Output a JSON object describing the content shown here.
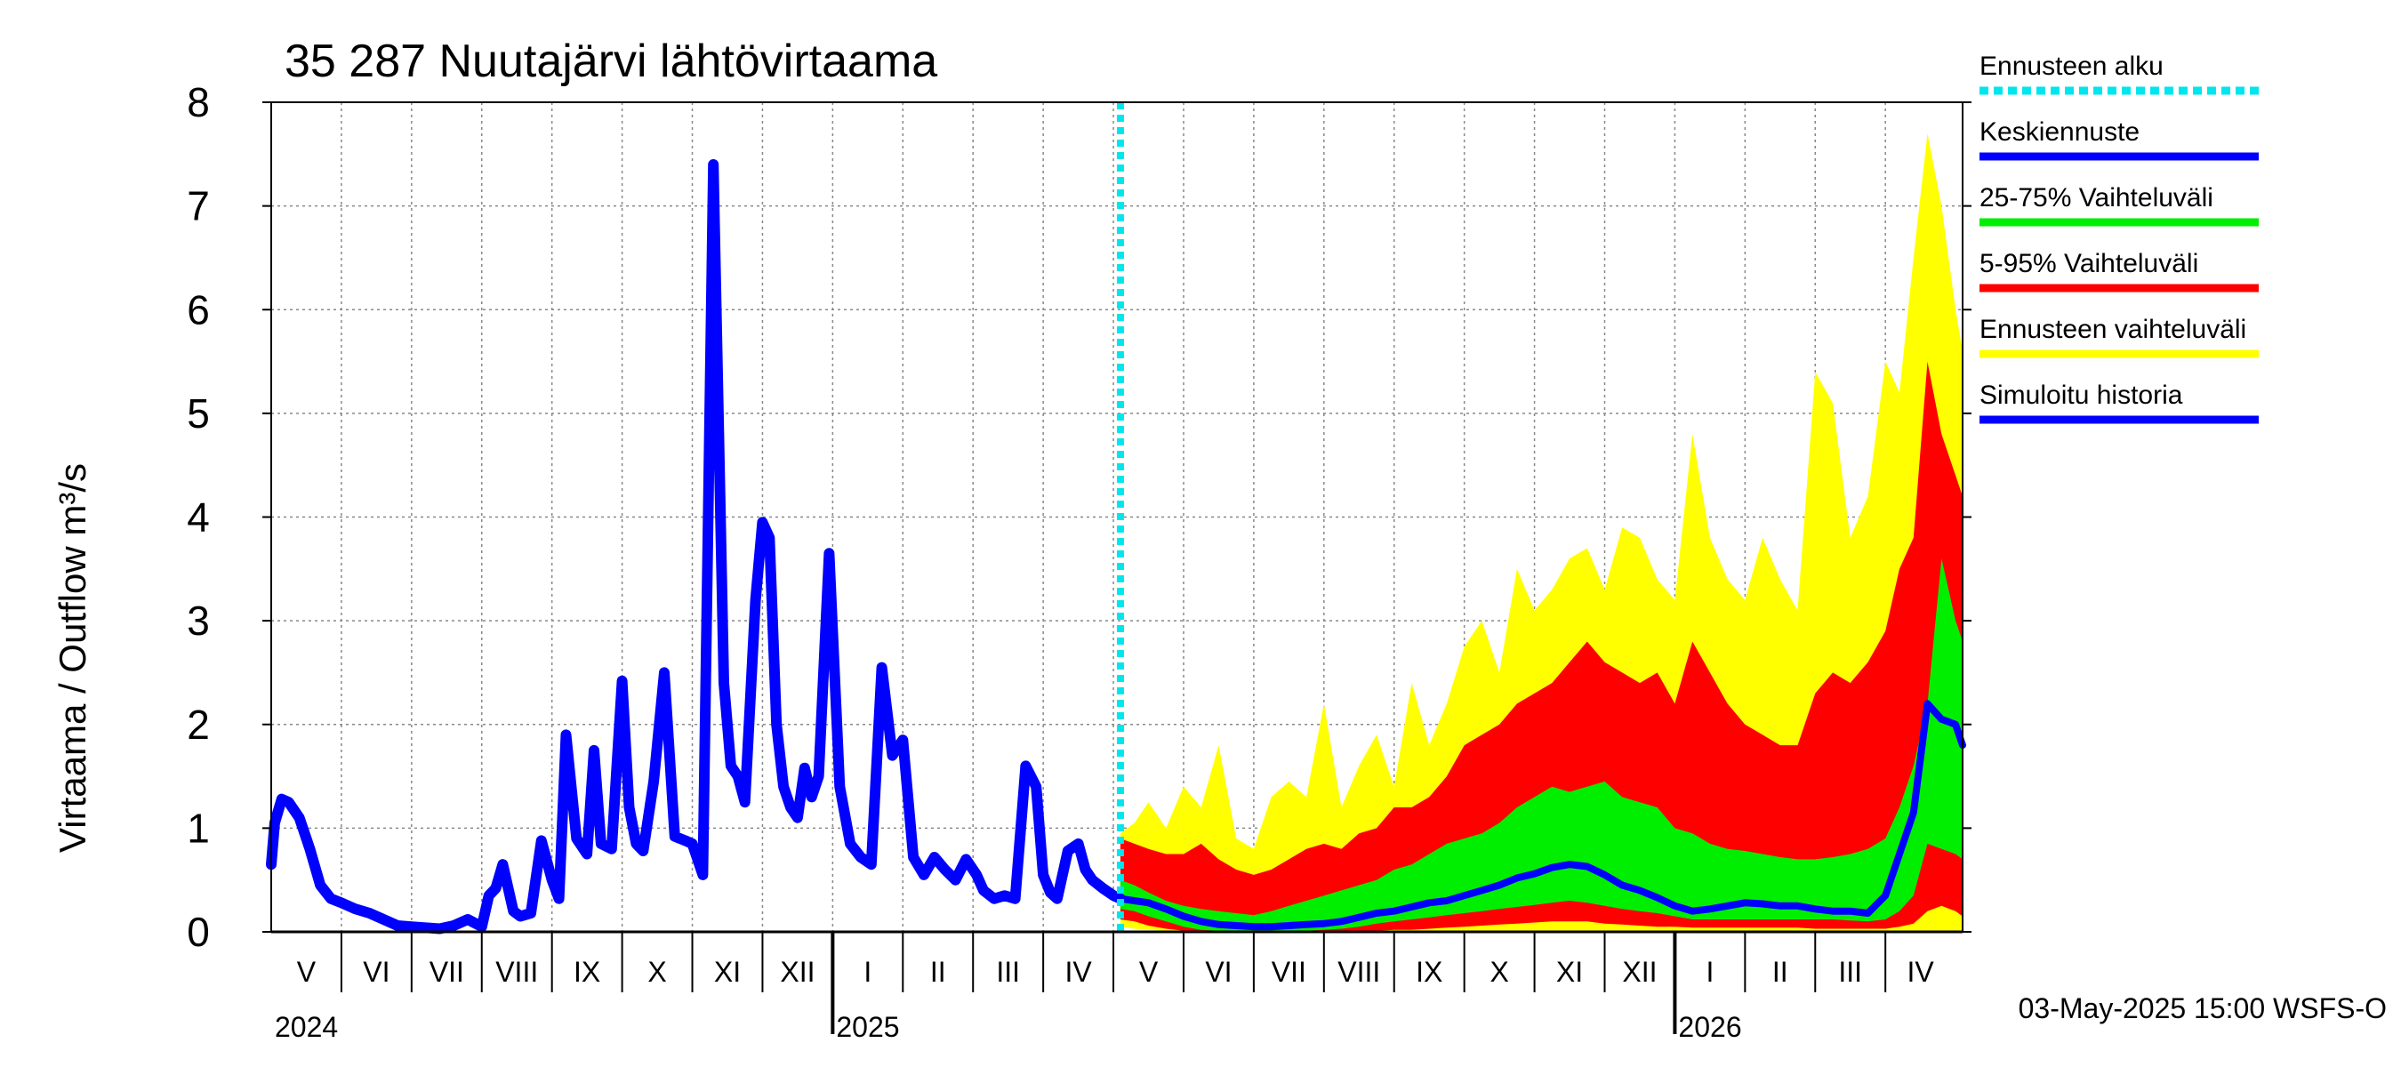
{
  "chart_data": {
    "type": "area",
    "title": "35 287 Nuutajärvi lähtövirtaama",
    "ylabel": "Virtaama / Outflow    m³/s",
    "ylim": [
      0,
      8
    ],
    "yticks": [
      "0",
      "1",
      "2",
      "3",
      "4",
      "5",
      "6",
      "7",
      "8"
    ],
    "months": [
      "V",
      "VI",
      "VII",
      "VIII",
      "IX",
      "X",
      "XI",
      "XII",
      "I",
      "II",
      "III",
      "IV",
      "V",
      "VI",
      "VII",
      "VIII",
      "IX",
      "X",
      "XI",
      "XII",
      "I",
      "II",
      "III",
      "IV"
    ],
    "years": [
      "2024",
      "2025",
      "2026"
    ],
    "x_range_months": [
      0,
      24.1
    ],
    "forecast_start_month": 12.1,
    "colors": {
      "forecast_start": "#00e5ee",
      "mean": "#0000ff",
      "p25_75": "#00ee00",
      "p5_95": "#ff0000",
      "range": "#ffff00",
      "history": "#0000ff",
      "grid": "#888888"
    },
    "legend": [
      {
        "label": "Ennusteen alku",
        "color": "#00e5ee",
        "style": "dotted"
      },
      {
        "label": "Keskiennuste",
        "color": "#0000ff",
        "style": "solid"
      },
      {
        "label": "25-75% Vaihteluväli",
        "color": "#00ee00",
        "style": "solid"
      },
      {
        "label": "5-95% Vaihteluväli",
        "color": "#ff0000",
        "style": "solid"
      },
      {
        "label": "Ennusteen vaihteluväli",
        "color": "#ffff00",
        "style": "solid"
      },
      {
        "label": "Simuloitu historia",
        "color": "#0000ff",
        "style": "solid"
      }
    ],
    "history": {
      "x": [
        0,
        0.05,
        0.15,
        0.25,
        0.4,
        0.55,
        0.7,
        0.85,
        1.0,
        1.2,
        1.4,
        1.6,
        1.8,
        2.0,
        2.2,
        2.4,
        2.6,
        2.8,
        3.0,
        3.1,
        3.2,
        3.3,
        3.45,
        3.55,
        3.7,
        3.85,
        4.0,
        4.1,
        4.2,
        4.35,
        4.5,
        4.6,
        4.7,
        4.85,
        5.0,
        5.1,
        5.2,
        5.3,
        5.45,
        5.6,
        5.75,
        5.9,
        6.0,
        6.15,
        6.3,
        6.45,
        6.55,
        6.65,
        6.75,
        6.9,
        7.0,
        7.1,
        7.2,
        7.3,
        7.4,
        7.5,
        7.6,
        7.7,
        7.8,
        7.95,
        8.1,
        8.25,
        8.4,
        8.55,
        8.7,
        8.85,
        9.0,
        9.15,
        9.3,
        9.45,
        9.6,
        9.75,
        9.9,
        10.05,
        10.15,
        10.3,
        10.45,
        10.6,
        10.75,
        10.9,
        11.0,
        11.1,
        11.2,
        11.35,
        11.5,
        11.6,
        11.7,
        11.85,
        12.0,
        12.1
      ],
      "y": [
        0.65,
        1.05,
        1.28,
        1.25,
        1.1,
        0.8,
        0.45,
        0.32,
        0.28,
        0.22,
        0.18,
        0.12,
        0.06,
        0.05,
        0.04,
        0.03,
        0.06,
        0.12,
        0.05,
        0.35,
        0.42,
        0.65,
        0.2,
        0.15,
        0.18,
        0.88,
        0.5,
        0.32,
        1.9,
        0.9,
        0.75,
        1.75,
        0.85,
        0.8,
        2.42,
        1.2,
        0.85,
        0.78,
        1.45,
        2.5,
        0.92,
        0.88,
        0.85,
        0.55,
        7.4,
        2.4,
        1.6,
        1.5,
        1.25,
        3.2,
        3.95,
        3.8,
        2.0,
        1.4,
        1.2,
        1.1,
        1.58,
        1.3,
        1.5,
        3.65,
        1.4,
        0.85,
        0.72,
        0.65,
        2.55,
        1.7,
        1.85,
        0.72,
        0.55,
        0.72,
        0.6,
        0.5,
        0.7,
        0.55,
        0.4,
        0.32,
        0.35,
        0.32,
        1.6,
        1.4,
        0.55,
        0.38,
        0.32,
        0.78,
        0.85,
        0.6,
        0.5,
        0.42,
        0.35,
        0.32
      ]
    },
    "forecast": {
      "x": [
        12.1,
        12.3,
        12.5,
        12.75,
        13.0,
        13.25,
        13.5,
        13.75,
        14.0,
        14.25,
        14.5,
        14.75,
        15.0,
        15.25,
        15.5,
        15.75,
        16.0,
        16.25,
        16.5,
        16.75,
        17.0,
        17.25,
        17.5,
        17.75,
        18.0,
        18.25,
        18.5,
        18.75,
        19.0,
        19.25,
        19.5,
        19.75,
        20.0,
        20.25,
        20.5,
        20.75,
        21.0,
        21.25,
        21.5,
        21.75,
        22.0,
        22.25,
        22.5,
        22.75,
        23.0,
        23.2,
        23.4,
        23.6,
        23.8,
        24.0,
        24.1
      ],
      "max": [
        0.95,
        1.05,
        1.25,
        1.0,
        1.4,
        1.2,
        1.8,
        0.9,
        0.8,
        1.3,
        1.45,
        1.3,
        2.2,
        1.2,
        1.6,
        1.9,
        1.4,
        2.4,
        1.8,
        2.2,
        2.75,
        3.0,
        2.5,
        3.5,
        3.1,
        3.3,
        3.6,
        3.7,
        3.3,
        3.9,
        3.8,
        3.4,
        3.2,
        4.8,
        3.8,
        3.4,
        3.2,
        3.8,
        3.4,
        3.1,
        5.4,
        5.1,
        3.8,
        4.2,
        5.5,
        5.2,
        6.5,
        7.7,
        7.0,
        6.0,
        5.6
      ],
      "p95": [
        0.9,
        0.85,
        0.8,
        0.75,
        0.75,
        0.85,
        0.7,
        0.6,
        0.55,
        0.6,
        0.7,
        0.8,
        0.85,
        0.8,
        0.95,
        1.0,
        1.2,
        1.2,
        1.3,
        1.5,
        1.8,
        1.9,
        2.0,
        2.2,
        2.3,
        2.4,
        2.6,
        2.8,
        2.6,
        2.5,
        2.4,
        2.5,
        2.2,
        2.8,
        2.5,
        2.2,
        2.0,
        1.9,
        1.8,
        1.8,
        2.3,
        2.5,
        2.4,
        2.6,
        2.9,
        3.5,
        3.8,
        5.5,
        4.8,
        4.4,
        4.2
      ],
      "p75": [
        0.5,
        0.45,
        0.38,
        0.3,
        0.25,
        0.22,
        0.2,
        0.18,
        0.16,
        0.2,
        0.25,
        0.3,
        0.35,
        0.4,
        0.45,
        0.5,
        0.6,
        0.65,
        0.75,
        0.85,
        0.9,
        0.95,
        1.05,
        1.2,
        1.3,
        1.4,
        1.35,
        1.4,
        1.45,
        1.3,
        1.25,
        1.2,
        1.0,
        0.95,
        0.85,
        0.8,
        0.78,
        0.75,
        0.72,
        0.7,
        0.7,
        0.72,
        0.75,
        0.8,
        0.9,
        1.2,
        1.6,
        2.2,
        3.6,
        3.0,
        2.8
      ],
      "mean": [
        0.32,
        0.3,
        0.28,
        0.22,
        0.15,
        0.1,
        0.07,
        0.06,
        0.05,
        0.05,
        0.06,
        0.07,
        0.08,
        0.1,
        0.14,
        0.18,
        0.2,
        0.24,
        0.28,
        0.3,
        0.35,
        0.4,
        0.45,
        0.52,
        0.56,
        0.62,
        0.65,
        0.63,
        0.55,
        0.45,
        0.4,
        0.33,
        0.25,
        0.2,
        0.22,
        0.25,
        0.28,
        0.27,
        0.25,
        0.25,
        0.22,
        0.2,
        0.2,
        0.18,
        0.35,
        0.75,
        1.15,
        2.2,
        2.05,
        2.0,
        1.8
      ],
      "p25": [
        0.22,
        0.2,
        0.15,
        0.1,
        0.05,
        0.02,
        0.01,
        0.01,
        0.01,
        0.01,
        0.01,
        0.01,
        0.02,
        0.03,
        0.05,
        0.08,
        0.1,
        0.12,
        0.14,
        0.16,
        0.18,
        0.2,
        0.22,
        0.24,
        0.26,
        0.28,
        0.3,
        0.28,
        0.25,
        0.22,
        0.2,
        0.18,
        0.15,
        0.12,
        0.12,
        0.12,
        0.12,
        0.12,
        0.12,
        0.12,
        0.12,
        0.12,
        0.11,
        0.1,
        0.12,
        0.2,
        0.35,
        0.85,
        0.8,
        0.75,
        0.7
      ],
      "p5": [
        0.12,
        0.1,
        0.06,
        0.03,
        0.01,
        0.0,
        0.0,
        0.0,
        0.0,
        0.0,
        0.0,
        0.0,
        0.0,
        0.0,
        0.01,
        0.01,
        0.02,
        0.02,
        0.03,
        0.04,
        0.05,
        0.06,
        0.07,
        0.08,
        0.09,
        0.1,
        0.1,
        0.1,
        0.08,
        0.07,
        0.06,
        0.05,
        0.05,
        0.04,
        0.04,
        0.04,
        0.04,
        0.04,
        0.04,
        0.04,
        0.03,
        0.03,
        0.03,
        0.03,
        0.03,
        0.05,
        0.08,
        0.2,
        0.25,
        0.2,
        0.15
      ],
      "min": [
        0.05,
        0.03,
        0.02,
        0.01,
        0.0,
        0.0,
        0.0,
        0.0,
        0.0,
        0.0,
        0.0,
        0.0,
        0.0,
        0.0,
        0.0,
        0.0,
        0.0,
        0.0,
        0.0,
        0.0,
        0.0,
        0.0,
        0.0,
        0.0,
        0.0,
        0.0,
        0.0,
        0.0,
        0.0,
        0.0,
        0.0,
        0.0,
        0.0,
        0.0,
        0.0,
        0.0,
        0.0,
        0.0,
        0.0,
        0.0,
        0.0,
        0.0,
        0.0,
        0.0,
        0.0,
        0.0,
        0.0,
        0.0,
        0.0,
        0.0,
        0.0
      ]
    }
  },
  "footer": {
    "timestamp": "03-May-2025 15:00 WSFS-O"
  }
}
